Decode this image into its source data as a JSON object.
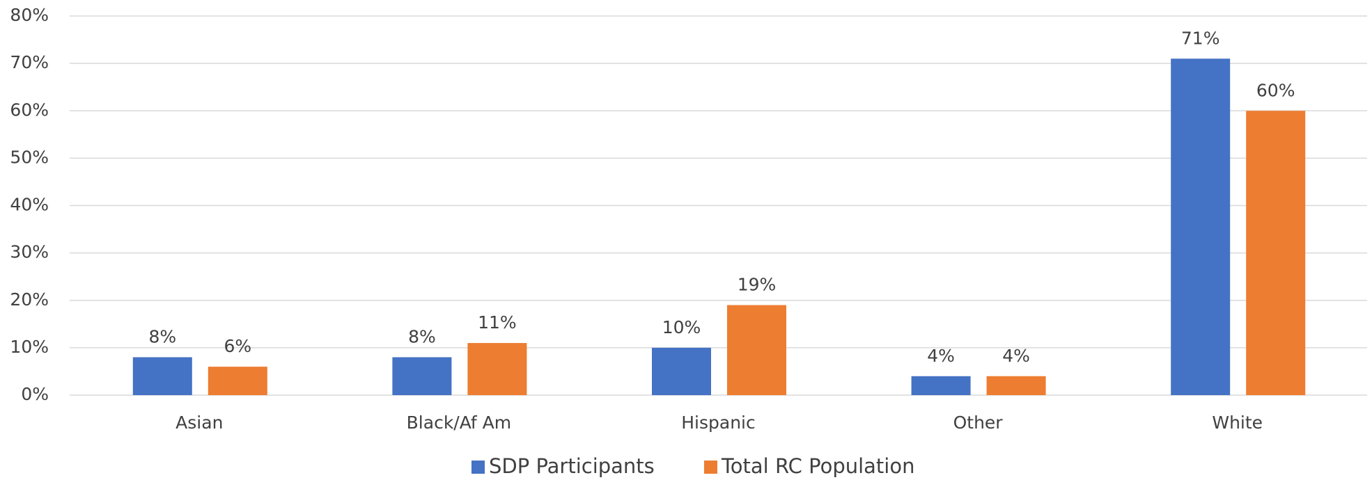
{
  "chart_data": {
    "type": "bar",
    "categories": [
      "Asian",
      "Black/Af Am",
      "Hispanic",
      "Other",
      "White"
    ],
    "series": [
      {
        "name": "SDP Participants",
        "color": "#4472c4",
        "values": [
          8,
          8,
          10,
          4,
          71
        ],
        "value_labels": [
          "8%",
          "8%",
          "10%",
          "4%",
          "71%"
        ]
      },
      {
        "name": "Total RC Population",
        "color": "#ed7d31",
        "values": [
          6,
          11,
          19,
          4,
          60
        ],
        "value_labels": [
          "6%",
          "11%",
          "19%",
          "4%",
          "60%"
        ]
      }
    ],
    "ylim": [
      0,
      80
    ],
    "yticks": [
      {
        "value": 0,
        "label": "0%"
      },
      {
        "value": 10,
        "label": "10%"
      },
      {
        "value": 20,
        "label": "20%"
      },
      {
        "value": 30,
        "label": "30%"
      },
      {
        "value": 40,
        "label": "40%"
      },
      {
        "value": 50,
        "label": "50%"
      },
      {
        "value": 60,
        "label": "60%"
      },
      {
        "value": 70,
        "label": "70%"
      },
      {
        "value": 80,
        "label": "80%"
      }
    ],
    "grid": true,
    "legend": "bottom"
  }
}
